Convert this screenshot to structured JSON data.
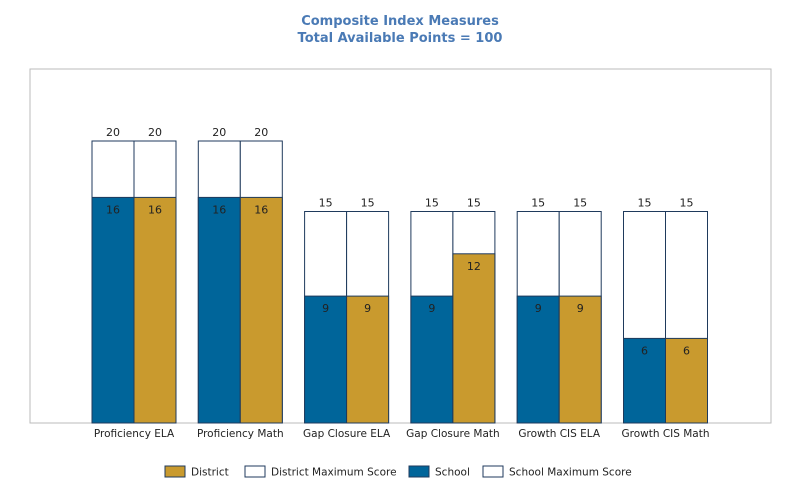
{
  "chart_data": {
    "type": "bar",
    "title": "Composite Index Measures",
    "subtitle": "Total Available Points = 100",
    "categories": [
      "Proficiency ELA",
      "Proficiency Math",
      "Gap Closure ELA",
      "Gap Closure Math",
      "Growth CIS ELA",
      "Growth CIS Math"
    ],
    "series": [
      {
        "name": "School",
        "values": [
          16,
          16,
          9,
          9,
          9,
          6
        ],
        "max_values": [
          20,
          20,
          15,
          15,
          15,
          15
        ]
      },
      {
        "name": "District",
        "values": [
          16,
          16,
          9,
          12,
          9,
          6
        ],
        "max_values": [
          20,
          20,
          15,
          15,
          15,
          15
        ]
      }
    ],
    "legend": [
      "District",
      "District Maximum Score",
      "School",
      "School Maximum Score"
    ],
    "legend_position": "bottom",
    "ylim": [
      0,
      20
    ],
    "grid": false,
    "colors": {
      "school": "#00659a",
      "district": "#c99a2e",
      "max": "#ffffff",
      "bar_border": "#1f3a5c",
      "title": "#4a7ab5",
      "frame": "#bbbbbb"
    }
  }
}
